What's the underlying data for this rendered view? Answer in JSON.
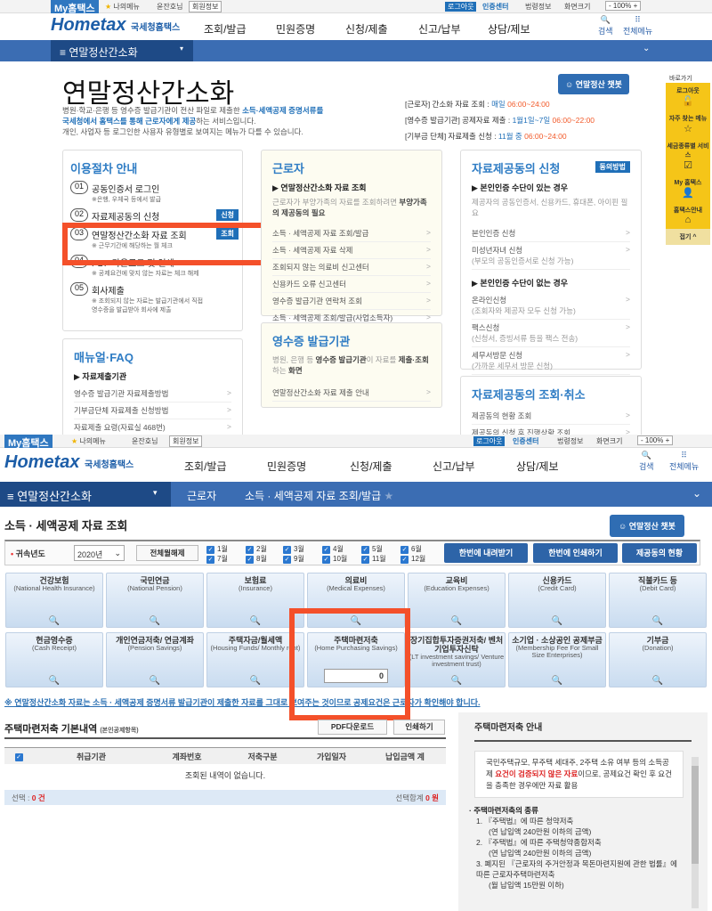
{
  "top_screen": {
    "topbar": {
      "my_hometax": "My홈택스",
      "my_menu": "나의메뉴",
      "user": "윤잔호님",
      "member_info": "회원정보",
      "logout": "로그아웃",
      "cert_center": "인증센터",
      "corp_info": "법령정보",
      "screen_size": "화면크기",
      "zoom": "100%"
    },
    "header": {
      "logo": "Hometax",
      "logo_sub": "국세청홈택스",
      "nav": [
        "조회/발급",
        "민원증명",
        "신청/제출",
        "신고/납부",
        "상담/제보"
      ],
      "search": "검색",
      "all_menu": "전체메뉴"
    },
    "menubar": {
      "section": "연말정산간소화"
    },
    "title": "연말정산간소화",
    "desc": {
      "l1a": "병원·학교·은행 등 영수증 발급기관이 전산 파일로 제출한 ",
      "l1b": "소득·세액공제 증명서류를",
      "l2a": "국세청에서 홈택스를 통해 근로자에게 제공",
      "l2b": "하는 서비스입니다.",
      "l3": "개인, 사업자 등 로그인한 사용자 유형별로 보여지는 메뉴가 다를 수 있습니다."
    },
    "chatbot": "연말정산 챗봇",
    "schedule": [
      {
        "label": "[근로자] 간소화 자료 조회 : ",
        "day": "매일 ",
        "time": "06:00~24:00"
      },
      {
        "label": "[영수증 발급기관] 공제자료 제출 : ",
        "day": "1월1일~7일 ",
        "time": "06:00~22:00"
      },
      {
        "label": "[기부금 단체] 자료제출 신청 : ",
        "day": "11월 중 ",
        "time": "06:00~24:00"
      }
    ],
    "quick_menu": {
      "title": "바로가기",
      "items": [
        "로그아웃",
        "자주 찾는 메뉴",
        "세금종류별 서비스",
        "My 홈택스",
        "홈택스안내"
      ],
      "collapse": "접기 ^"
    },
    "procedure": {
      "title": "이용절차 안내",
      "steps": [
        {
          "num": "01",
          "label": "공동인증서 로그인",
          "sub": "※은행, 우체국 등에서 발급"
        },
        {
          "num": "02",
          "label": "자료제공동의 신청",
          "btn": "신청"
        },
        {
          "num": "03",
          "label": "연말정산간소화 자료 조회",
          "sub": "※ 근무기간에 해당하는 월 체크",
          "btn": "조회"
        },
        {
          "num": "04",
          "label": "PDF 다운로드 및 인쇄",
          "sub": "※ 공제요건에 맞지 않는 자료는 체크 해제"
        },
        {
          "num": "05",
          "label": "회사제출",
          "sub": "※ 조회되지 않는 자료는 발급기관에서 직접 영수증을 발급받아 회사에 제출"
        }
      ]
    },
    "faq": {
      "title": "매뉴얼·FAQ",
      "sec": "▶ 자료제출기관",
      "items": [
        "영수증 발급기관 자료제출방법",
        "기부금단체 자료제출 신청방법",
        "자료제출 요령(자료실 468번)"
      ]
    },
    "worker": {
      "title": "근로자",
      "sec": "▶ 연말정산간소화 자료 조회",
      "desc_a": "근로자가 부양가족의 자료를 조회하려면 ",
      "desc_b": "부양가족의 제공동의 필요",
      "items": [
        "소득 · 세액공제 자료 조회/발급",
        "소득 · 세액공제 자료 삭제",
        "조회되지 않는 의료비 신고센터",
        "신용카드 오류 신고센터",
        "영수증 발급기관 연락처 조회",
        "소득 · 세액공제 조회/발급(사업소득자)"
      ]
    },
    "issuer": {
      "title": "영수증 발급기관",
      "desc_a": "병원, 은행 등 ",
      "desc_b": "영수증 발급기관",
      "desc_c": "이 자료를 ",
      "desc_d": "제출·조회",
      "desc_e": "하는 ",
      "desc_f": "화면",
      "items": [
        "연말정산간소화 자료 제출 안내"
      ]
    },
    "consent": {
      "title": "자료제공동의 신청",
      "btn": "동의방법",
      "sec1": "▶ 본인인증 수단이 있는 경우",
      "desc1": "제공자의 공동인증서, 신용카드, 휴대폰, 아이핀 필요",
      "items1": [
        {
          "label": "본인인증 신청"
        },
        {
          "label": "미성년자녀 신청",
          "sub": "(부모의 공동인증서로 신청 가능)"
        }
      ],
      "sec2": "▶ 본인인증 수단이 없는 경우",
      "items2": [
        {
          "label": "온라인신청",
          "sub": "(조회자와 제공자 모두 신청 가능)"
        },
        {
          "label": "팩스신청",
          "sub": "(신청서, 증빙서류 등을 팩스 전송)"
        },
        {
          "label": "세무서방문 신청",
          "sub": "(가까운 세무서 방문 신청)"
        }
      ]
    },
    "cancel": {
      "title": "자료제공동의 조회·취소",
      "items": [
        "제공동의 현황 조회",
        "제공동의 신청 후 진행상황 조회"
      ]
    }
  },
  "bottom_screen": {
    "menubar": {
      "section": "연말정산간소화",
      "crumb1": "근로자",
      "crumb2": "소득 · 세액공제 자료 조회/발급"
    },
    "title": "소득 · 세액공제 자료 조회",
    "chatbot": "연말정산 챗봇",
    "filter": {
      "label": "귀속년도",
      "year": "2020년",
      "toggle_all": "전체월해제",
      "months": [
        "1월",
        "2월",
        "3월",
        "4월",
        "5월",
        "6월",
        "7월",
        "8월",
        "9월",
        "10월",
        "11월",
        "12월"
      ],
      "all_checked": true
    },
    "actions": [
      "한번에 내려받기",
      "한번에 인쇄하기",
      "제공동의 현황"
    ],
    "tiles": [
      {
        "ko": "건강보험",
        "en": "(National Health Insurance)"
      },
      {
        "ko": "국민연금",
        "en": "(National Pension)"
      },
      {
        "ko": "보험료",
        "en": "(Insurance)"
      },
      {
        "ko": "의료비",
        "en": "(Medical Expenses)"
      },
      {
        "ko": "교육비",
        "en": "(Education Expenses)"
      },
      {
        "ko": "신용카드",
        "en": "(Credit Card)"
      },
      {
        "ko": "직불카드 등",
        "en": "(Debit Card)"
      },
      {
        "ko": "현금영수증",
        "en": "(Cash Receipt)"
      },
      {
        "ko": "개인연금저축/ 연금계좌",
        "en": "(Pension Savings)"
      },
      {
        "ko": "주택자금/월세액",
        "en": "(Housing Funds/ Monthly rent)"
      },
      {
        "ko": "주택마련저축",
        "en": "(Home Purchasing Savings)",
        "value": "0"
      },
      {
        "ko": "장기집합투자증권저축/ 벤처기업투자신탁",
        "en": "(LT investment savings/ Venture investment trust)"
      },
      {
        "ko": "소기업 · 소상공인 공제부금",
        "en": "(Membership Fee For Small Size Enterprises)"
      },
      {
        "ko": "기부금",
        "en": "(Donation)"
      }
    ],
    "notice": "※ 연말정산간소화 자료는 소득 · 세액공제 증명서류 발급기관이 제출한 자료를 그대로 보여주는 것이므로 공제요건은 근로자가 확인해야 합니다.",
    "detail": {
      "title": "주택마련저축 기본내역",
      "subtitle": "(본인공제항목)",
      "pdf": "PDF다운로드",
      "print": "인쇄하기",
      "columns": [
        "취급기관",
        "계좌번호",
        "저축구분",
        "가입일자",
        "납입금액 계"
      ],
      "empty": "조회된 내역이 없습니다.",
      "selected_label": "선택 : ",
      "selected_count": "0 건",
      "sum_label": "선택합계 ",
      "sum_value": "0 원"
    },
    "guide": {
      "title": "주택마련저축 안내",
      "box_a": "국민주택규모, 무주택 세대주, 2주택 소유 여부 등의 소득공제 ",
      "box_b": "요건이 검증되지 않은 자료",
      "box_c": "이므로, 공제요건 확인 후 요건을 충족한 경우에만 자료 활용",
      "kinds_title": "· 주택마련저축의 종류",
      "kinds": [
        "1. 『주택법』에 따른 청약저축",
        "(연 납입액 240만원 이하의 금액)",
        "2. 『주택법』에 따른 주택청약종합저축",
        "(연 납입액 240만원 이하의 금액)",
        "3. 폐지된 『근로자의 주거안정과 목돈마련지원에 관한 법률』에 따른 근로자주택마련저축",
        "(월 납입액 15만원 이하)"
      ]
    }
  },
  "colors": {
    "brand_blue": "#2f77c0",
    "nav_dark": "#1e4a86",
    "highlight_red": "#f4502a",
    "quick_yellow": "#f5c518"
  }
}
